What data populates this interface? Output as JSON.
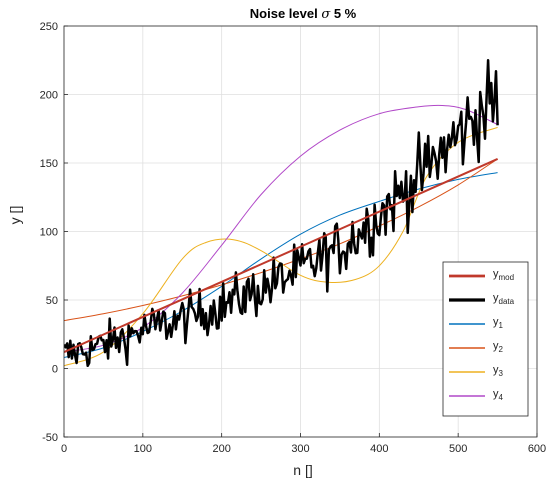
{
  "chart_data": {
    "type": "line",
    "title": "Noise level σ 5 %",
    "xlabel": "n []",
    "ylabel": "y []",
    "xlim": [
      0,
      600
    ],
    "ylim": [
      -50,
      250
    ],
    "xticks": [
      "0",
      "100",
      "200",
      "300",
      "400",
      "500",
      "600"
    ],
    "yticks": [
      "-50",
      "0",
      "50",
      "100",
      "150",
      "200",
      "250"
    ],
    "grid": true,
    "legend_position": "lower-right",
    "series": [
      {
        "name": "y_mod",
        "legend_main": "y",
        "legend_sub": "mod",
        "color": "#c0392b",
        "width": 2,
        "x": [
          0,
          550
        ],
        "y": [
          12,
          153
        ]
      },
      {
        "name": "y_data",
        "legend_main": "y",
        "legend_sub": "data",
        "color": "#000000",
        "width": 2.5,
        "noisy": true,
        "x": [
          0,
          50,
          100,
          150,
          200,
          250,
          300,
          350,
          400,
          450,
          500,
          530,
          550
        ],
        "y": [
          10,
          17,
          28,
          36,
          46,
          58,
          72,
          88,
          112,
          140,
          170,
          188,
          198
        ]
      },
      {
        "name": "y_1",
        "legend_main": "y",
        "legend_sub": "1",
        "color": "#0072bd",
        "width": 1,
        "x": [
          0,
          50,
          100,
          150,
          200,
          250,
          300,
          350,
          400,
          450,
          500,
          550
        ],
        "y": [
          8,
          15,
          27,
          42,
          60,
          80,
          98,
          112,
          122,
          131,
          138,
          143
        ]
      },
      {
        "name": "y_2",
        "legend_main": "y",
        "legend_sub": "2",
        "color": "#d95319",
        "width": 1,
        "x": [
          0,
          50,
          100,
          150,
          200,
          250,
          300,
          350,
          400,
          450,
          500,
          550
        ],
        "y": [
          35,
          40,
          46,
          53,
          61,
          70,
          80,
          91,
          104,
          118,
          134,
          153
        ]
      },
      {
        "name": "y_3",
        "legend_main": "y",
        "legend_sub": "3",
        "color": "#edb120",
        "width": 1,
        "x": [
          0,
          50,
          100,
          150,
          180,
          215,
          250,
          300,
          335,
          370,
          400,
          430,
          460,
          500,
          550
        ],
        "y": [
          2,
          12,
          40,
          80,
          92,
          94,
          86,
          68,
          63,
          65,
          75,
          100,
          140,
          165,
          176
        ]
      },
      {
        "name": "y_4",
        "legend_main": "y",
        "legend_sub": "4",
        "color": "#b148c8",
        "width": 1,
        "x": [
          0,
          50,
          100,
          150,
          200,
          250,
          300,
          350,
          400,
          450,
          480,
          510,
          550
        ],
        "y": [
          12,
          17,
          30,
          55,
          90,
          127,
          155,
          174,
          186,
          191,
          192,
          189,
          178
        ]
      }
    ]
  }
}
